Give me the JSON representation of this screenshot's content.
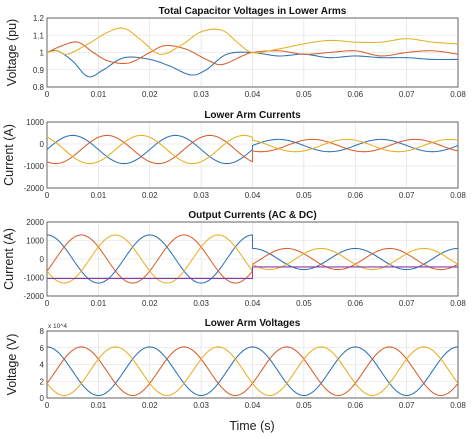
{
  "figure": {
    "xlabel": "Time (s)"
  },
  "colors": {
    "blue": "#2f73b6",
    "orange": "#d95f2b",
    "yellow": "#e8b020",
    "purple": "#8a3aa8"
  },
  "chart_data": [
    {
      "type": "line",
      "title": "Total Capacitor Voltages in Lower Arms",
      "ylabel": "Voltage (pu)",
      "xlim": [
        0,
        0.08
      ],
      "ylim": [
        0.8,
        1.2
      ],
      "xticks": [
        "0",
        "0.01",
        "0.02",
        "0.03",
        "0.04",
        "0.05",
        "0.06",
        "0.07",
        "0.08"
      ],
      "yticks": [
        "0.8",
        "0.9",
        "1",
        "1.1",
        "1.2"
      ],
      "grid": true,
      "series": [
        {
          "color": "blue",
          "x": [
            0,
            0.002,
            0.005,
            0.008,
            0.011,
            0.015,
            0.02,
            0.024,
            0.028,
            0.031,
            0.035,
            0.04,
            0.045,
            0.05,
            0.055,
            0.06,
            0.065,
            0.07,
            0.075,
            0.08
          ],
          "y": [
            1.0,
            1.01,
            0.95,
            0.86,
            0.9,
            0.97,
            0.96,
            0.92,
            0.87,
            0.9,
            0.99,
            1.0,
            0.98,
            0.99,
            0.97,
            0.98,
            0.97,
            0.97,
            0.96,
            0.96
          ]
        },
        {
          "color": "orange",
          "x": [
            0,
            0.003,
            0.006,
            0.009,
            0.012,
            0.016,
            0.02,
            0.023,
            0.027,
            0.031,
            0.034,
            0.038,
            0.04,
            0.045,
            0.05,
            0.055,
            0.06,
            0.065,
            0.07,
            0.075,
            0.08
          ],
          "y": [
            1.0,
            1.04,
            1.06,
            1.0,
            0.95,
            0.94,
            1.0,
            1.04,
            1.02,
            0.96,
            0.93,
            0.98,
            1.0,
            1.01,
            0.99,
            1.0,
            1.01,
            0.98,
            1.0,
            1.01,
            0.99
          ]
        },
        {
          "color": "yellow",
          "x": [
            0,
            0.002,
            0.004,
            0.008,
            0.012,
            0.015,
            0.018,
            0.022,
            0.026,
            0.03,
            0.034,
            0.037,
            0.04,
            0.045,
            0.05,
            0.055,
            0.06,
            0.065,
            0.07,
            0.075,
            0.08
          ],
          "y": [
            1.0,
            1.01,
            0.99,
            1.05,
            1.12,
            1.14,
            1.08,
            0.99,
            1.04,
            1.12,
            1.13,
            1.06,
            1.0,
            1.02,
            1.05,
            1.07,
            1.06,
            1.06,
            1.08,
            1.06,
            1.05
          ]
        }
      ]
    },
    {
      "type": "line",
      "title": "Lower Arm Currents",
      "ylabel": "Current (A)",
      "xlim": [
        0,
        0.08
      ],
      "ylim": [
        -2000,
        1000
      ],
      "xticks": [
        "0",
        "0.01",
        "0.02",
        "0.03",
        "0.04",
        "0.05",
        "0.06",
        "0.07",
        "0.08"
      ],
      "yticks": [
        "-2000",
        "-1000",
        "0",
        "1000"
      ],
      "grid": true,
      "series": [
        {
          "color": "blue",
          "wave": {
            "amp": 640,
            "offset": -250,
            "phase_deg": 0,
            "freq_hz": 50,
            "switch_t": 0.04,
            "amp_after": 280,
            "offset_after": -70
          }
        },
        {
          "color": "orange",
          "wave": {
            "amp": 640,
            "offset": -250,
            "phase_deg": -120,
            "freq_hz": 50,
            "switch_t": 0.04,
            "amp_after": 280,
            "offset_after": -70
          }
        },
        {
          "color": "yellow",
          "wave": {
            "amp": 640,
            "offset": -250,
            "phase_deg": 120,
            "freq_hz": 50,
            "switch_t": 0.04,
            "amp_after": 280,
            "offset_after": -70
          }
        }
      ]
    },
    {
      "type": "line",
      "title": "Output Currents (AC & DC)",
      "ylabel": "Current (A)",
      "xlim": [
        0,
        0.08
      ],
      "ylim": [
        -2000,
        2000
      ],
      "xticks": [
        "0",
        "0.01",
        "0.02",
        "0.03",
        "0.04",
        "0.05",
        "0.06",
        "0.07",
        "0.08"
      ],
      "yticks": [
        "-2000",
        "-1000",
        "0",
        "1000",
        "2000"
      ],
      "grid": true,
      "series": [
        {
          "color": "blue",
          "wave": {
            "amp": 1300,
            "offset": 0,
            "phase_deg": 90,
            "freq_hz": 50,
            "switch_t": 0.04,
            "amp_after": 570,
            "offset_after": 0
          }
        },
        {
          "color": "orange",
          "wave": {
            "amp": 1300,
            "offset": 0,
            "phase_deg": -30,
            "freq_hz": 50,
            "switch_t": 0.04,
            "amp_after": 570,
            "offset_after": 0
          }
        },
        {
          "color": "yellow",
          "wave": {
            "amp": 1300,
            "offset": 0,
            "phase_deg": 210,
            "freq_hz": 50,
            "switch_t": 0.04,
            "amp_after": 570,
            "offset_after": 0
          }
        },
        {
          "color": "purple",
          "wave": {
            "amp": 0,
            "offset": -1050,
            "phase_deg": 0,
            "freq_hz": 50,
            "switch_t": 0.04,
            "amp_after": 0,
            "offset_after": -430
          }
        }
      ]
    },
    {
      "type": "line",
      "title": "Lower Arm Voltages",
      "ylabel": "Voltage (V)",
      "exponent": "x 10^4",
      "xlim": [
        0,
        0.08
      ],
      "ylim": [
        0,
        8
      ],
      "xticks": [
        "0",
        "0.01",
        "0.02",
        "0.03",
        "0.04",
        "0.05",
        "0.06",
        "0.07",
        "0.08"
      ],
      "yticks": [
        "0",
        "2",
        "4",
        "6",
        "8"
      ],
      "grid": true,
      "series": [
        {
          "color": "blue",
          "wave": {
            "amp": 2.9,
            "offset": 3.2,
            "phase_deg": 90,
            "freq_hz": 50,
            "switch_t": 0.04,
            "amp_after": 2.9,
            "offset_after": 3.2
          }
        },
        {
          "color": "orange",
          "wave": {
            "amp": 2.9,
            "offset": 3.2,
            "phase_deg": -30,
            "freq_hz": 50,
            "switch_t": 0.04,
            "amp_after": 2.9,
            "offset_after": 3.2
          }
        },
        {
          "color": "yellow",
          "wave": {
            "amp": 2.9,
            "offset": 3.2,
            "phase_deg": 210,
            "freq_hz": 50,
            "switch_t": 0.04,
            "amp_after": 2.9,
            "offset_after": 3.2
          }
        }
      ]
    }
  ]
}
